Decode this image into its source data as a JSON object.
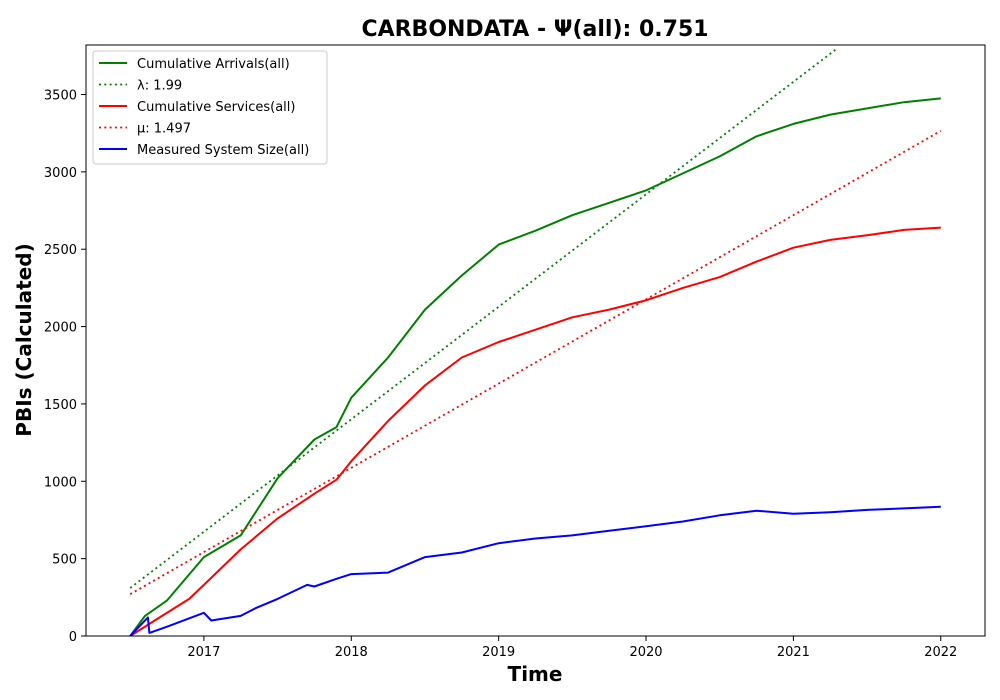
{
  "chart_data": {
    "type": "line",
    "title": "CARBONDATA -  Ψ(all): 0.751",
    "xlabel": "Time",
    "ylabel": "PBIs (Calculated)",
    "xlim": [
      2016.2,
      2022.3
    ],
    "ylim": [
      0,
      3820
    ],
    "xticks": [
      2017,
      2018,
      2019,
      2020,
      2021,
      2022
    ],
    "xtick_labels": [
      "2017",
      "2018",
      "2019",
      "2020",
      "2021",
      "2022"
    ],
    "yticks": [
      0,
      500,
      1000,
      1500,
      2000,
      2500,
      3000,
      3500
    ],
    "ytick_labels": [
      "0",
      "500",
      "1000",
      "1500",
      "2000",
      "2500",
      "3000",
      "3500"
    ],
    "grid": false,
    "legend_position": "top-left",
    "series": [
      {
        "name": "Cumulative Arrivals(all)",
        "color": "#008000",
        "style": "solid",
        "x": [
          2016.5,
          2016.6,
          2016.75,
          2017.0,
          2017.25,
          2017.5,
          2017.75,
          2017.9,
          2018.0,
          2018.25,
          2018.5,
          2018.75,
          2019.0,
          2019.25,
          2019.5,
          2019.75,
          2020.0,
          2020.25,
          2020.5,
          2020.75,
          2021.0,
          2021.25,
          2021.5,
          2021.75,
          2022.0
        ],
        "y": [
          0,
          130,
          230,
          510,
          650,
          1020,
          1270,
          1350,
          1540,
          1800,
          2110,
          2330,
          2530,
          2620,
          2720,
          2800,
          2880,
          2990,
          3100,
          3230,
          3310,
          3370,
          3410,
          3450,
          3475
        ]
      },
      {
        "name": "λ: 1.99",
        "color": "#008000",
        "style": "dotted",
        "x": [
          2016.5,
          2021.3
        ],
        "y": [
          310,
          3800
        ]
      },
      {
        "name": "Cumulative Services(all)",
        "color": "#ff0000",
        "style": "solid",
        "x": [
          2016.5,
          2016.7,
          2016.9,
          2017.0,
          2017.25,
          2017.5,
          2017.75,
          2017.9,
          2018.0,
          2018.25,
          2018.5,
          2018.75,
          2019.0,
          2019.25,
          2019.5,
          2019.75,
          2020.0,
          2020.25,
          2020.5,
          2020.75,
          2021.0,
          2021.25,
          2021.5,
          2021.75,
          2022.0
        ],
        "y": [
          0,
          120,
          240,
          330,
          560,
          760,
          920,
          1010,
          1130,
          1390,
          1620,
          1800,
          1900,
          1980,
          2060,
          2110,
          2170,
          2250,
          2320,
          2420,
          2510,
          2560,
          2590,
          2625,
          2640
        ]
      },
      {
        "name": "μ: 1.497",
        "color": "#ff0000",
        "style": "dotted",
        "x": [
          2016.5,
          2022.0
        ],
        "y": [
          270,
          3265
        ]
      },
      {
        "name": "Measured System Size(all)",
        "color": "#0000ff",
        "style": "solid",
        "x": [
          2016.5,
          2016.62,
          2016.63,
          2016.75,
          2017.0,
          2017.05,
          2017.25,
          2017.35,
          2017.5,
          2017.7,
          2017.75,
          2017.9,
          2018.0,
          2018.25,
          2018.5,
          2018.75,
          2019.0,
          2019.25,
          2019.5,
          2019.75,
          2020.0,
          2020.25,
          2020.5,
          2020.75,
          2021.0,
          2021.25,
          2021.5,
          2021.75,
          2022.0
        ],
        "y": [
          0,
          120,
          20,
          60,
          150,
          100,
          130,
          180,
          240,
          330,
          320,
          370,
          400,
          410,
          510,
          540,
          600,
          630,
          650,
          680,
          710,
          740,
          780,
          810,
          790,
          800,
          815,
          825,
          835
        ]
      }
    ]
  }
}
